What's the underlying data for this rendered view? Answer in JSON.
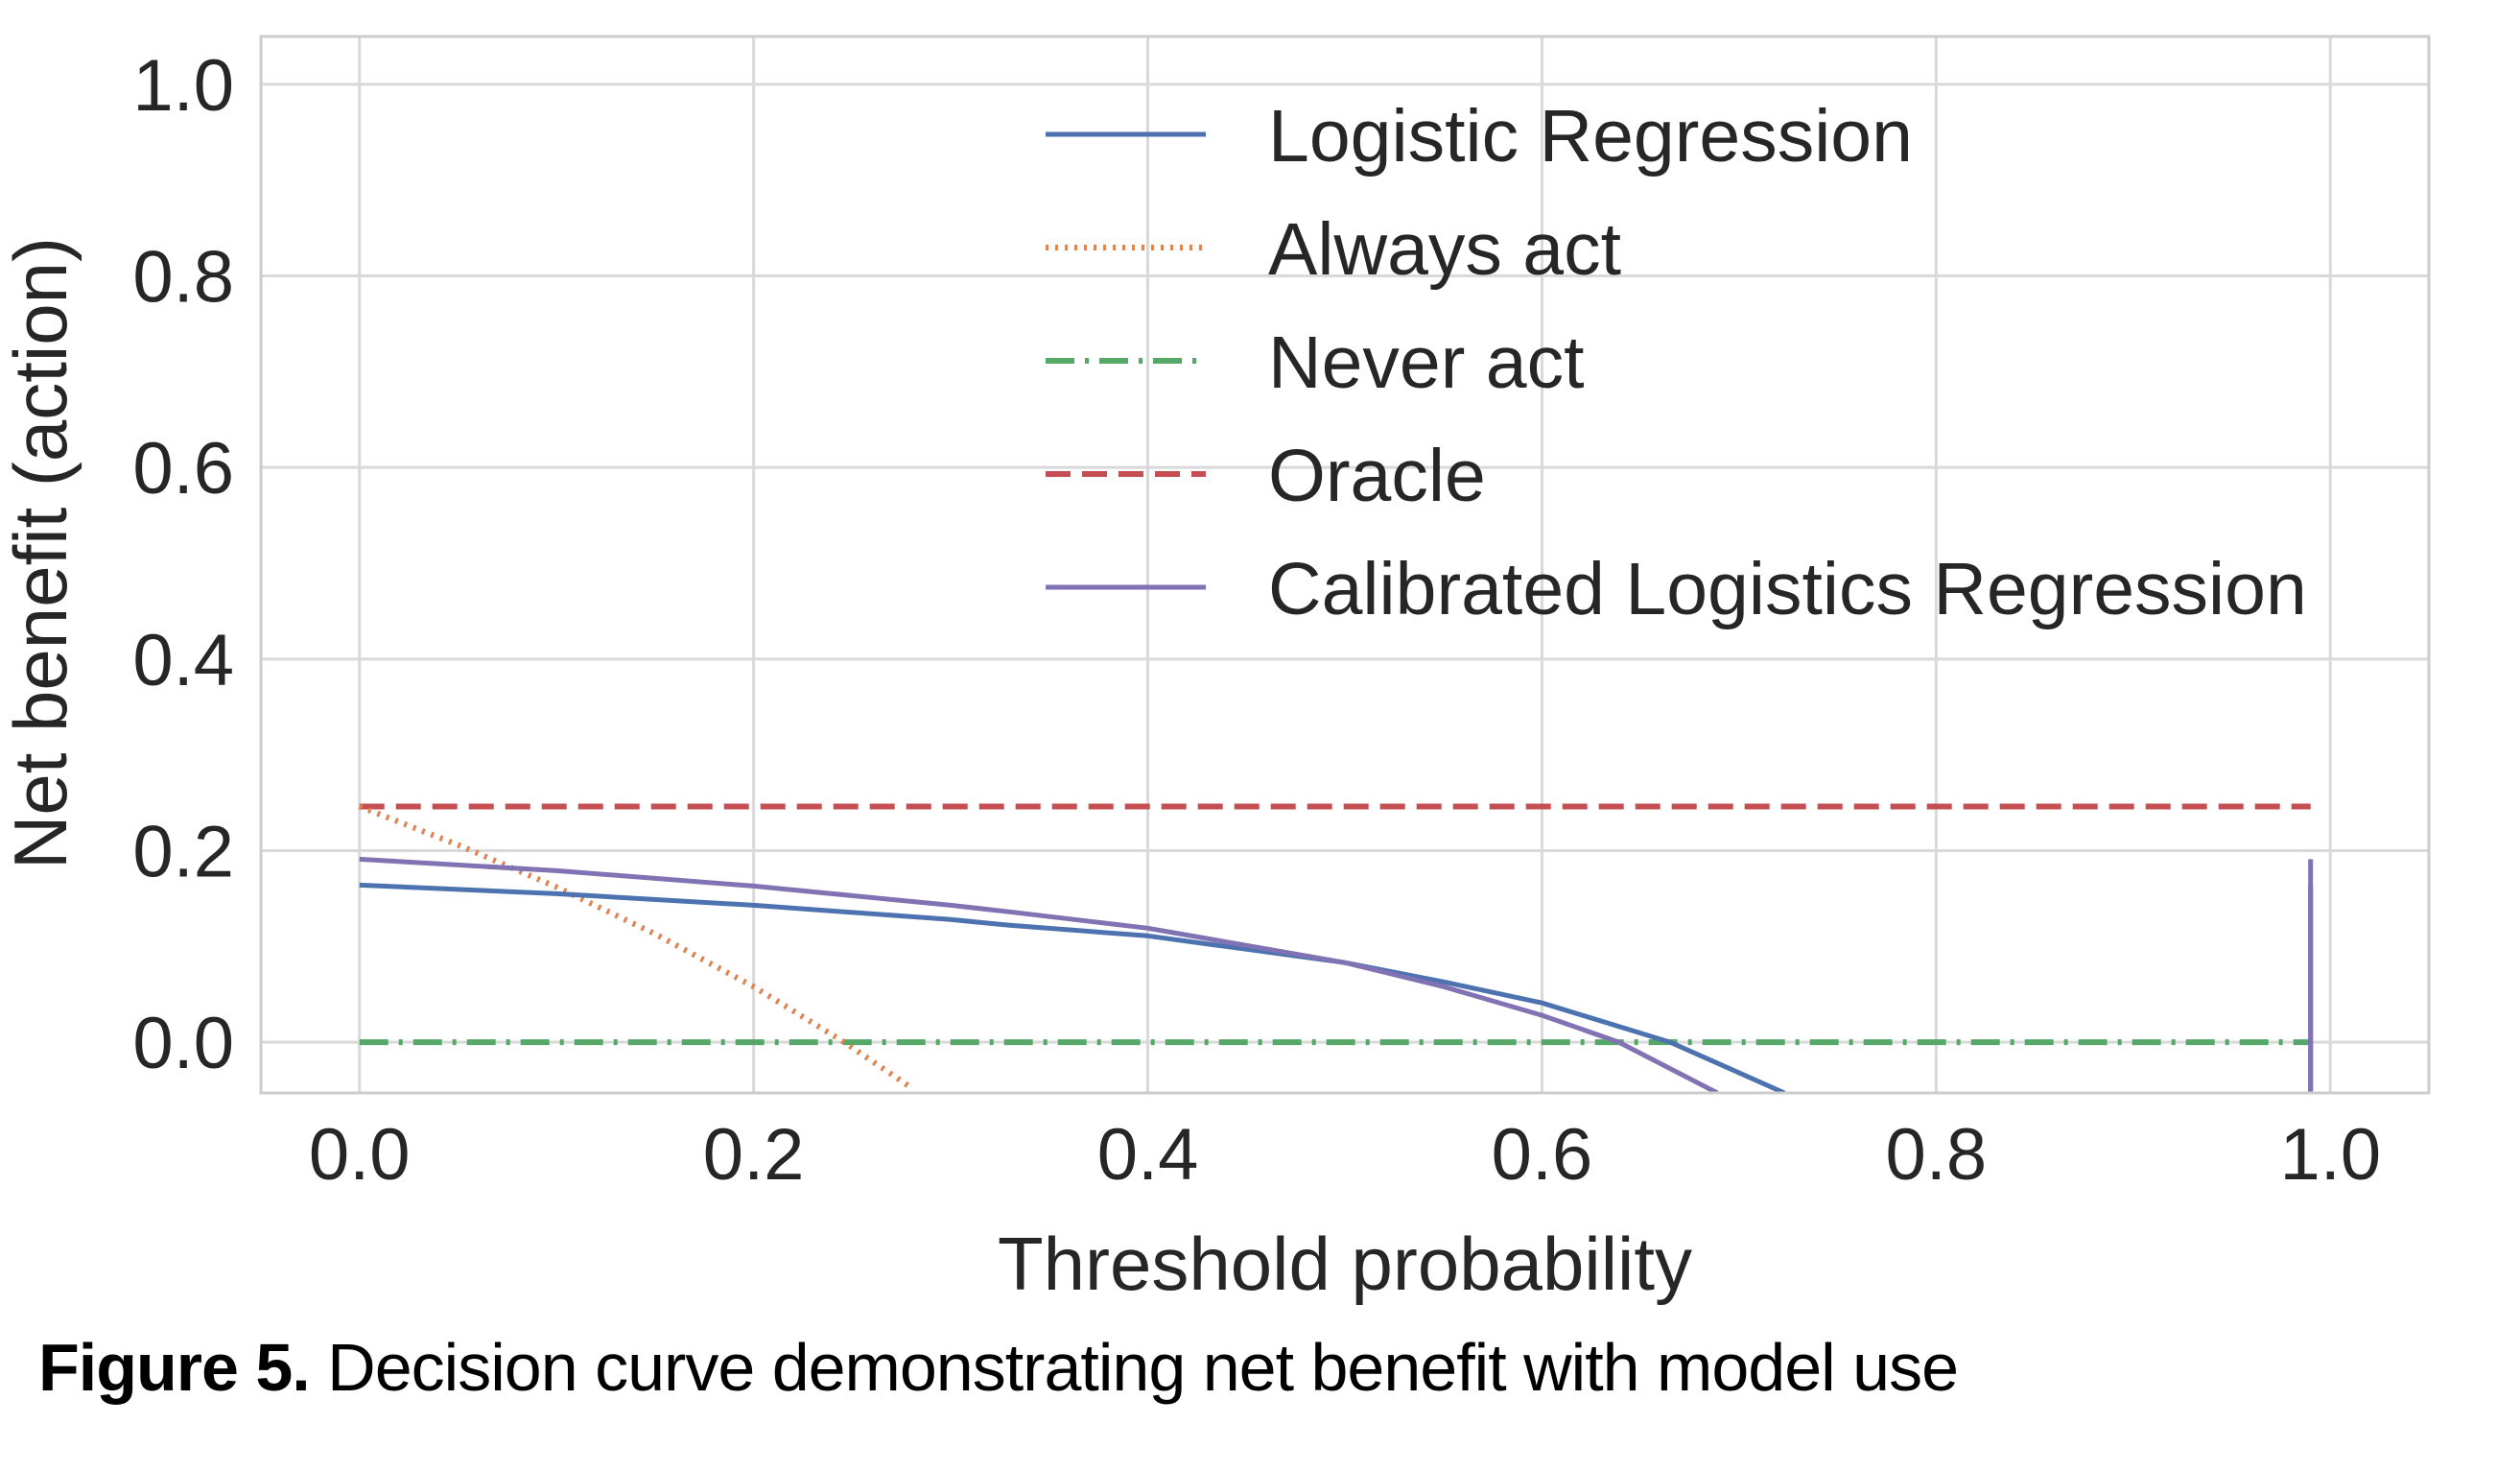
{
  "chart_data": {
    "type": "line",
    "title": "",
    "xlabel": "Threshold probability",
    "ylabel": "Net benefit (action)",
    "xlim": [
      -0.05,
      1.05
    ],
    "ylim": [
      -0.053,
      1.05
    ],
    "grid": true,
    "legend_position": "top-right",
    "xticks": [
      0.0,
      0.2,
      0.4,
      0.6,
      0.8,
      1.0
    ],
    "xtick_labels": [
      "0.0",
      "0.2",
      "0.4",
      "0.6",
      "0.8",
      "1.0"
    ],
    "yticks": [
      0.0,
      0.2,
      0.4,
      0.6,
      0.8,
      1.0
    ],
    "ytick_labels": [
      "0.0",
      "0.2",
      "0.4",
      "0.6",
      "0.8",
      "1.0"
    ],
    "series": [
      {
        "name": "Logistic Regression",
        "color": "#4C72B0",
        "style": "solid",
        "x": [
          0.0,
          0.1,
          0.2,
          0.3,
          0.33,
          0.4,
          0.5,
          0.55,
          0.6,
          0.665,
          0.723,
          null,
          0.99,
          0.99
        ],
        "y": [
          0.164,
          0.155,
          0.143,
          0.128,
          0.122,
          0.111,
          0.083,
          0.063,
          0.041,
          0.0,
          -0.053,
          null,
          -0.053,
          0.164
        ]
      },
      {
        "name": "Always act",
        "color": "#DD8452",
        "style": "dotted",
        "x": [
          0.0,
          0.05,
          0.1,
          0.15,
          0.2,
          0.246,
          0.281
        ],
        "y": [
          0.246,
          0.206,
          0.162,
          0.113,
          0.058,
          0.0,
          -0.049
        ]
      },
      {
        "name": "Never act",
        "color": "#55A868",
        "style": "dashdot",
        "x": [
          0.0,
          0.99
        ],
        "y": [
          0.0,
          0.0
        ]
      },
      {
        "name": "Oracle",
        "color": "#C44E52",
        "style": "dashed",
        "x": [
          0.0,
          0.99
        ],
        "y": [
          0.246,
          0.246
        ]
      },
      {
        "name": "Calibrated Logistics Regression",
        "color": "#8172B3",
        "style": "solid",
        "x": [
          0.0,
          0.1,
          0.2,
          0.3,
          0.33,
          0.4,
          0.5,
          0.55,
          0.6,
          0.639,
          0.689,
          null,
          0.99,
          0.99
        ],
        "y": [
          0.191,
          0.179,
          0.163,
          0.143,
          0.136,
          0.119,
          0.083,
          0.058,
          0.028,
          0.0,
          -0.053,
          null,
          -0.053,
          0.191
        ]
      }
    ]
  },
  "caption": {
    "lead": "Figure 5.",
    "text": " Decision curve demonstrating net benefit with model use"
  }
}
